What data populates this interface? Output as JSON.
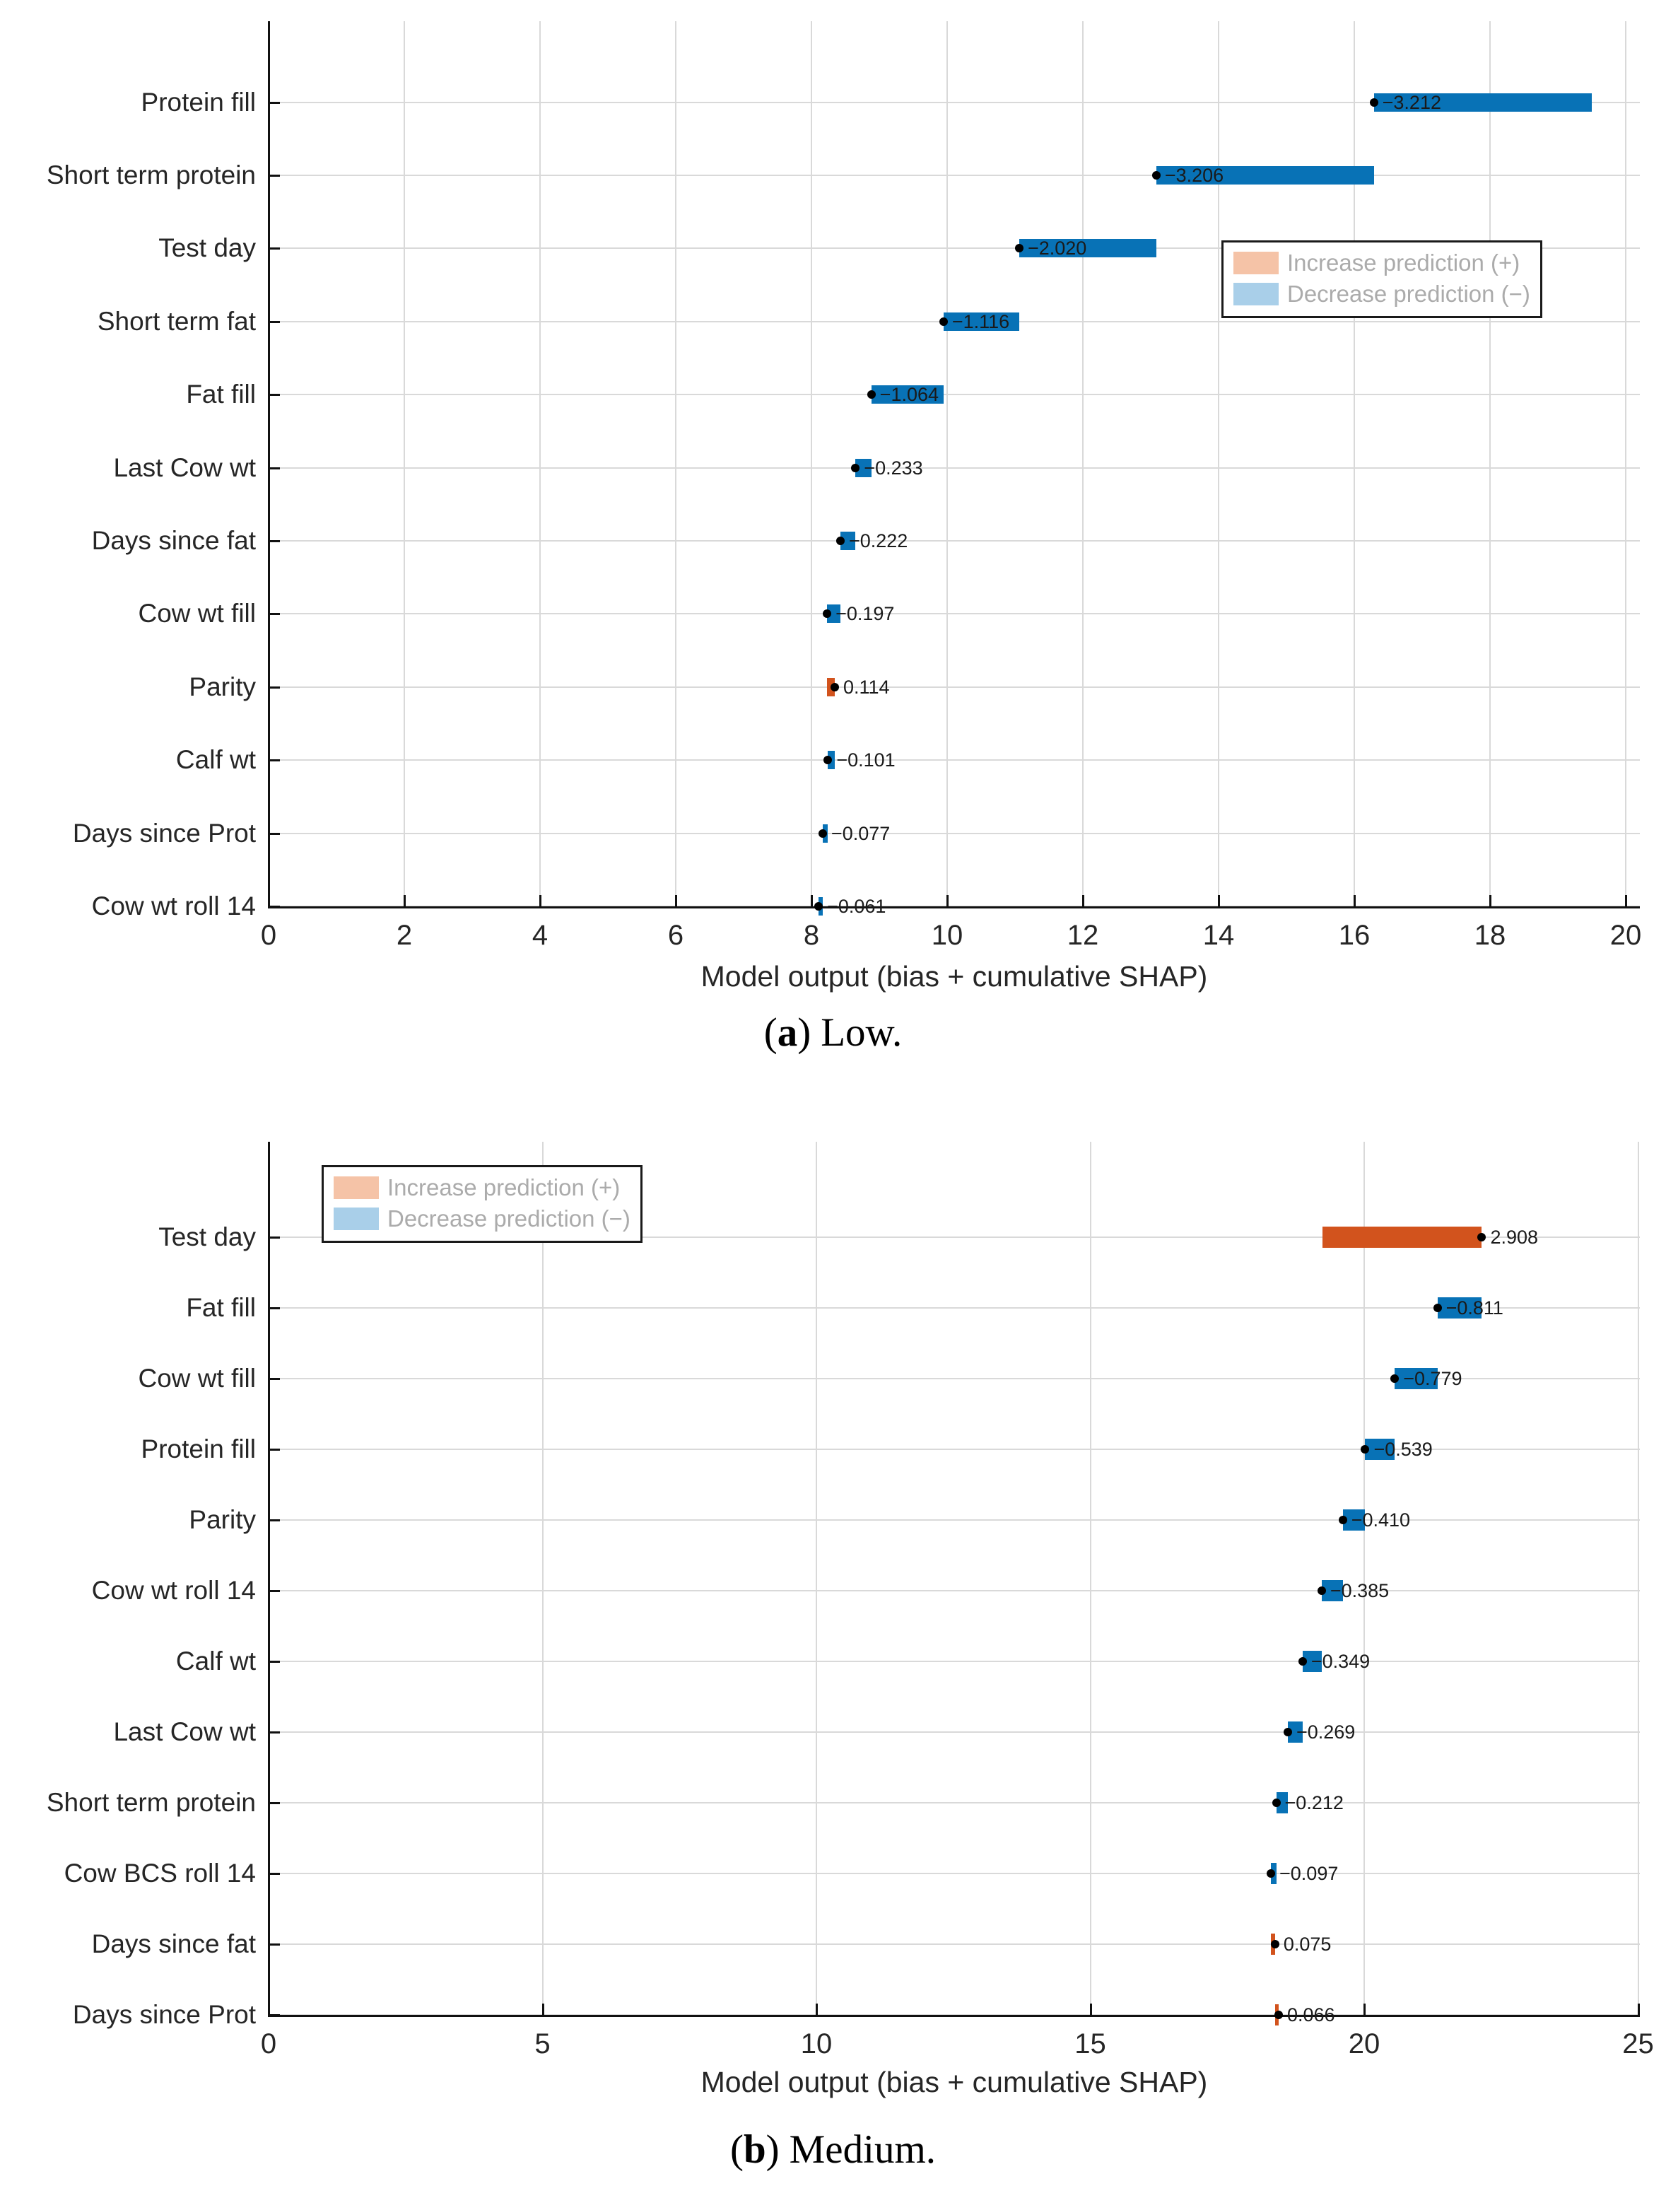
{
  "page": {
    "background": "#ffffff"
  },
  "colors": {
    "bar_increase": "#d2531d",
    "bar_decrease": "#0872b6",
    "legend_increase_swatch": "#f5c3a7",
    "legend_decrease_swatch": "#a9cfe9",
    "legend_text": "#ababab",
    "grid": "#d9d9d9",
    "axis": "#111111",
    "dot": "#000000"
  },
  "legend": {
    "increase_label": "Increase prediction (+)",
    "decrease_label": "Decrease prediction (−)"
  },
  "chart_data": [
    {
      "id": "a",
      "type": "bar",
      "subtype": "shap-cumulative-waterfall",
      "caption": {
        "open": "(",
        "letter": "a",
        "close": ")",
        "text": "Low."
      },
      "xlabel": "Model output (bias + cumulative SHAP)",
      "xlim": [
        0,
        20
      ],
      "xticks": [
        0,
        2,
        4,
        6,
        8,
        10,
        12,
        14,
        16,
        18,
        20
      ],
      "start_value": 19.5,
      "final_value": 8.105,
      "legend_position": "right",
      "grid": true,
      "rows": [
        {
          "feature": "Protein fill",
          "shap": -3.212,
          "label": "−3.212"
        },
        {
          "feature": "Short term protein",
          "shap": -3.206,
          "label": "−3.206"
        },
        {
          "feature": "Test day",
          "shap": -2.02,
          "label": "−2.020"
        },
        {
          "feature": "Short term fat",
          "shap": -1.116,
          "label": "−1.116"
        },
        {
          "feature": "Fat fill",
          "shap": -1.064,
          "label": "−1.064"
        },
        {
          "feature": "Last Cow wt",
          "shap": -0.233,
          "label": "−0.233"
        },
        {
          "feature": "Days since fat",
          "shap": -0.222,
          "label": "−0.222"
        },
        {
          "feature": "Cow wt fill",
          "shap": -0.197,
          "label": "−0.197"
        },
        {
          "feature": "Parity",
          "shap": 0.114,
          "label": "0.114"
        },
        {
          "feature": "Calf wt",
          "shap": -0.101,
          "label": "−0.101"
        },
        {
          "feature": "Days since Prot",
          "shap": -0.077,
          "label": "−0.077"
        },
        {
          "feature": "Cow wt roll 14",
          "shap": -0.061,
          "label": "−0.061"
        }
      ]
    },
    {
      "id": "b",
      "type": "bar",
      "subtype": "shap-cumulative-waterfall",
      "caption": {
        "open": "(",
        "letter": "b",
        "close": ")",
        "text": "Medium."
      },
      "xlabel": "Model output (bias + cumulative SHAP)",
      "xlim": [
        0,
        25
      ],
      "xticks": [
        0,
        5,
        10,
        15,
        20,
        25
      ],
      "start_value": 19.24,
      "final_value": 18.438,
      "legend_position": "left",
      "grid": true,
      "rows": [
        {
          "feature": "Test day",
          "shap": 2.908,
          "label": "2.908"
        },
        {
          "feature": "Fat fill",
          "shap": -0.811,
          "label": "−0.811"
        },
        {
          "feature": "Cow wt fill",
          "shap": -0.779,
          "label": "−0.779"
        },
        {
          "feature": "Protein fill",
          "shap": -0.539,
          "label": "−0.539"
        },
        {
          "feature": "Parity",
          "shap": -0.41,
          "label": "−0.410"
        },
        {
          "feature": "Cow wt roll 14",
          "shap": -0.385,
          "label": "−0.385"
        },
        {
          "feature": "Calf wt",
          "shap": -0.349,
          "label": "−0.349"
        },
        {
          "feature": "Last Cow wt",
          "shap": -0.269,
          "label": "−0.269"
        },
        {
          "feature": "Short term protein",
          "shap": -0.212,
          "label": "−0.212"
        },
        {
          "feature": "Cow BCS roll 14",
          "shap": -0.097,
          "label": "−0.097"
        },
        {
          "feature": "Days since fat",
          "shap": 0.075,
          "label": "0.075"
        },
        {
          "feature": "Days since Prot",
          "shap": 0.066,
          "label": "0.066"
        }
      ]
    }
  ]
}
